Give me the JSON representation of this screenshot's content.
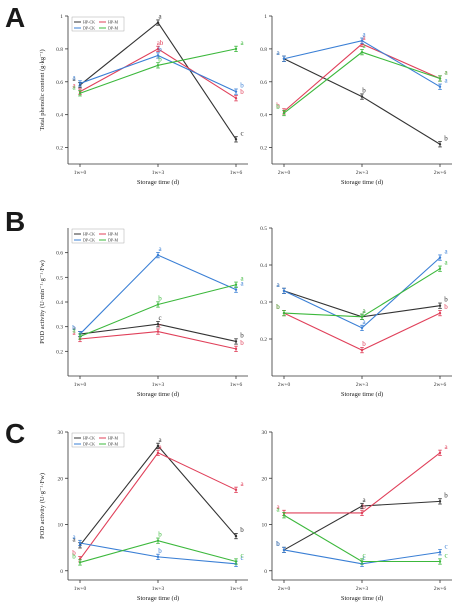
{
  "panel_letters": [
    "A",
    "B",
    "C"
  ],
  "colors": {
    "HP-CK": "#333333",
    "HP-M": "#e0405a",
    "DP-CK": "#3a7fd5",
    "DP-M": "#3cb83c"
  },
  "chart_data": [
    {
      "id": "A-left",
      "type": "line",
      "xlabel": "Storage time (d)",
      "ylabel": "Total phenolic content (g·kg⁻¹)",
      "ylim": [
        0.1,
        1.0
      ],
      "yticks": [
        0.2,
        0.4,
        0.6,
        0.8,
        1.0
      ],
      "categories": [
        "1w+0",
        "1w+3",
        "1w+6"
      ],
      "legend": [
        "HP-CK",
        "HP-M",
        "DP-CK",
        "DP-M"
      ],
      "series": [
        {
          "name": "HP-CK",
          "values": [
            0.58,
            0.96,
            0.25
          ],
          "letters": [
            "a",
            "a",
            "c"
          ]
        },
        {
          "name": "HP-M",
          "values": [
            0.54,
            0.8,
            0.5
          ],
          "letters": [
            "a",
            "ab",
            "b"
          ]
        },
        {
          "name": "DP-CK",
          "values": [
            0.59,
            0.76,
            0.54
          ],
          "letters": [
            "a",
            "b",
            "b"
          ]
        },
        {
          "name": "DP-M",
          "values": [
            0.53,
            0.7,
            0.8
          ],
          "letters": [
            "a",
            "b",
            "a"
          ]
        }
      ]
    },
    {
      "id": "A-right",
      "type": "line",
      "xlabel": "Storage time (d)",
      "ylabel": "",
      "ylim": [
        0.1,
        1.0
      ],
      "yticks": [
        0.2,
        0.4,
        0.6,
        0.8,
        1.0
      ],
      "categories": [
        "2w+0",
        "2w+3",
        "2w+6"
      ],
      "legend": [],
      "series": [
        {
          "name": "HP-CK",
          "values": [
            0.74,
            0.51,
            0.22
          ],
          "letters": [
            "a",
            "b",
            "b"
          ]
        },
        {
          "name": "HP-M",
          "values": [
            0.42,
            0.83,
            0.62
          ],
          "letters": [
            "b",
            "a",
            "a"
          ]
        },
        {
          "name": "DP-CK",
          "values": [
            0.74,
            0.85,
            0.57
          ],
          "letters": [
            "a",
            "a",
            "a"
          ]
        },
        {
          "name": "DP-M",
          "values": [
            0.41,
            0.78,
            0.62
          ],
          "letters": [
            "b",
            "a",
            "a"
          ]
        }
      ]
    },
    {
      "id": "B-left",
      "type": "line",
      "xlabel": "Storage time (d)",
      "ylabel": "POD activity (U·min⁻¹·g⁻¹·Fw)",
      "ylim": [
        0.1,
        0.7
      ],
      "yticks": [
        0.2,
        0.3,
        0.4,
        0.5,
        0.6
      ],
      "categories": [
        "1w+0",
        "1w+3",
        "1w+6"
      ],
      "legend": [
        "HP-CK",
        "HP-M",
        "DP-CK",
        "DP-M"
      ],
      "series": [
        {
          "name": "HP-CK",
          "values": [
            0.27,
            0.31,
            0.24
          ],
          "letters": [
            "a",
            "c",
            "b"
          ]
        },
        {
          "name": "HP-M",
          "values": [
            0.25,
            0.28,
            0.21
          ],
          "letters": [
            "a",
            "c",
            "b"
          ]
        },
        {
          "name": "DP-CK",
          "values": [
            0.27,
            0.59,
            0.45
          ],
          "letters": [
            "b",
            "a",
            "a"
          ]
        },
        {
          "name": "DP-M",
          "values": [
            0.26,
            0.39,
            0.47
          ],
          "letters": [
            "a",
            "b",
            "a"
          ]
        }
      ]
    },
    {
      "id": "B-right",
      "type": "line",
      "xlabel": "Storage time (d)",
      "ylabel": "",
      "ylim": [
        0.1,
        0.5
      ],
      "yticks": [
        0.2,
        0.3,
        0.4,
        0.5
      ],
      "categories": [
        "2w+0",
        "2w+3",
        "2w+6"
      ],
      "legend": [],
      "series": [
        {
          "name": "HP-CK",
          "values": [
            0.33,
            0.26,
            0.29
          ],
          "letters": [
            "a",
            "a",
            "b"
          ]
        },
        {
          "name": "HP-M",
          "values": [
            0.27,
            0.17,
            0.27
          ],
          "letters": [
            "b",
            "b",
            "b"
          ]
        },
        {
          "name": "DP-CK",
          "values": [
            0.33,
            0.23,
            0.42
          ],
          "letters": [
            "a",
            "a",
            "a"
          ]
        },
        {
          "name": "DP-M",
          "values": [
            0.27,
            0.26,
            0.39
          ],
          "letters": [
            "b",
            "a",
            "a"
          ]
        }
      ]
    },
    {
      "id": "C-left",
      "type": "line",
      "xlabel": "Storage time (d)",
      "ylabel": "POD activity (U·g⁻¹·Fw)",
      "ylim": [
        -2,
        30
      ],
      "yticks": [
        0,
        10,
        20,
        30
      ],
      "categories": [
        "1w+0",
        "1w+3",
        "1w+6"
      ],
      "legend": [
        "HP-CK",
        "HP-M",
        "DP-CK",
        "DP-M"
      ],
      "series": [
        {
          "name": "HP-CK",
          "values": [
            5.5,
            27.0,
            7.5
          ],
          "letters": [
            "a",
            "a",
            "b"
          ]
        },
        {
          "name": "HP-M",
          "values": [
            2.5,
            25.5,
            17.5
          ],
          "letters": [
            "b",
            "a",
            "a"
          ]
        },
        {
          "name": "DP-CK",
          "values": [
            6.0,
            3.0,
            1.5
          ],
          "letters": [
            "a",
            "b",
            "c"
          ]
        },
        {
          "name": "DP-M",
          "values": [
            1.8,
            6.5,
            2.0
          ],
          "letters": [
            "b",
            "b",
            "c"
          ]
        }
      ]
    },
    {
      "id": "C-right",
      "type": "line",
      "xlabel": "Storage time (d)",
      "ylabel": "",
      "ylim": [
        -2,
        30
      ],
      "yticks": [
        0,
        10,
        20,
        30
      ],
      "categories": [
        "2w+0",
        "2w+3",
        "2w+6"
      ],
      "legend": [],
      "series": [
        {
          "name": "HP-CK",
          "values": [
            4.5,
            14.0,
            15.0
          ],
          "letters": [
            "b",
            "a",
            "b"
          ]
        },
        {
          "name": "HP-M",
          "values": [
            12.5,
            12.5,
            25.5
          ],
          "letters": [
            "a",
            "b",
            "a"
          ]
        },
        {
          "name": "DP-CK",
          "values": [
            4.5,
            1.5,
            4.0
          ],
          "letters": [
            "b",
            "c",
            "c"
          ]
        },
        {
          "name": "DP-M",
          "values": [
            12.0,
            2.0,
            2.0
          ],
          "letters": [
            "a",
            "c",
            "c"
          ]
        }
      ]
    }
  ]
}
